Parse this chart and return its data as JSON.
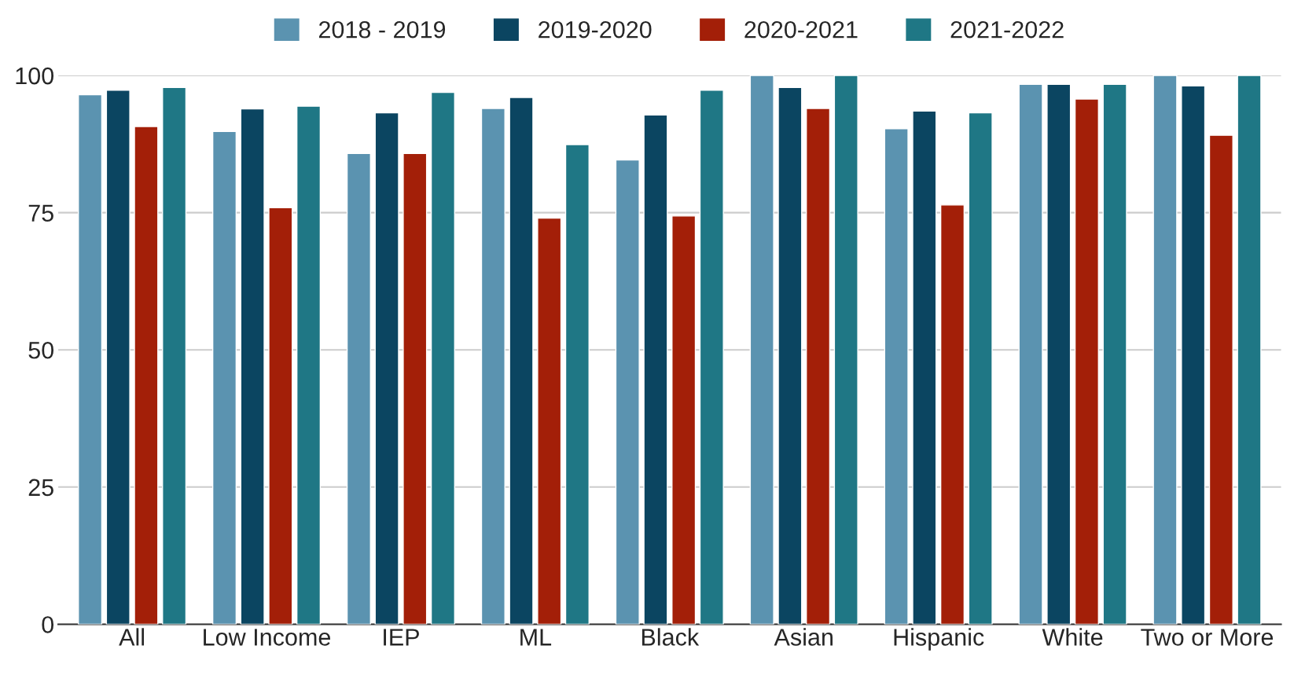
{
  "chart_data": {
    "type": "bar",
    "categories": [
      "All",
      "Low Income",
      "IEP",
      "ML",
      "Black",
      "Asian",
      "Hispanic",
      "White",
      "Two or More"
    ],
    "series": [
      {
        "name": "2018 - 2019",
        "color": "#5b93b0",
        "values": [
          96.5,
          89.8,
          85.8,
          94,
          84.6,
          100,
          90.3,
          98.4,
          100
        ]
      },
      {
        "name": "2019-2020",
        "color": "#0b4561",
        "values": [
          97.3,
          93.9,
          93.2,
          96,
          92.8,
          97.8,
          93.5,
          98.4,
          98.1
        ]
      },
      {
        "name": "2020-2021",
        "color": "#a31f08",
        "values": [
          90.7,
          75.9,
          85.8,
          74,
          74.4,
          94,
          76.4,
          95.7,
          89.1
        ]
      },
      {
        "name": "2021-2022",
        "color": "#1f7785",
        "values": [
          97.8,
          94.4,
          96.9,
          87.4,
          97.3,
          100,
          93.2,
          98.4,
          100
        ]
      }
    ],
    "ylim": [
      0,
      100
    ],
    "yticks": [
      0,
      25,
      50,
      75,
      100
    ],
    "grid": "y",
    "legend": "top"
  }
}
